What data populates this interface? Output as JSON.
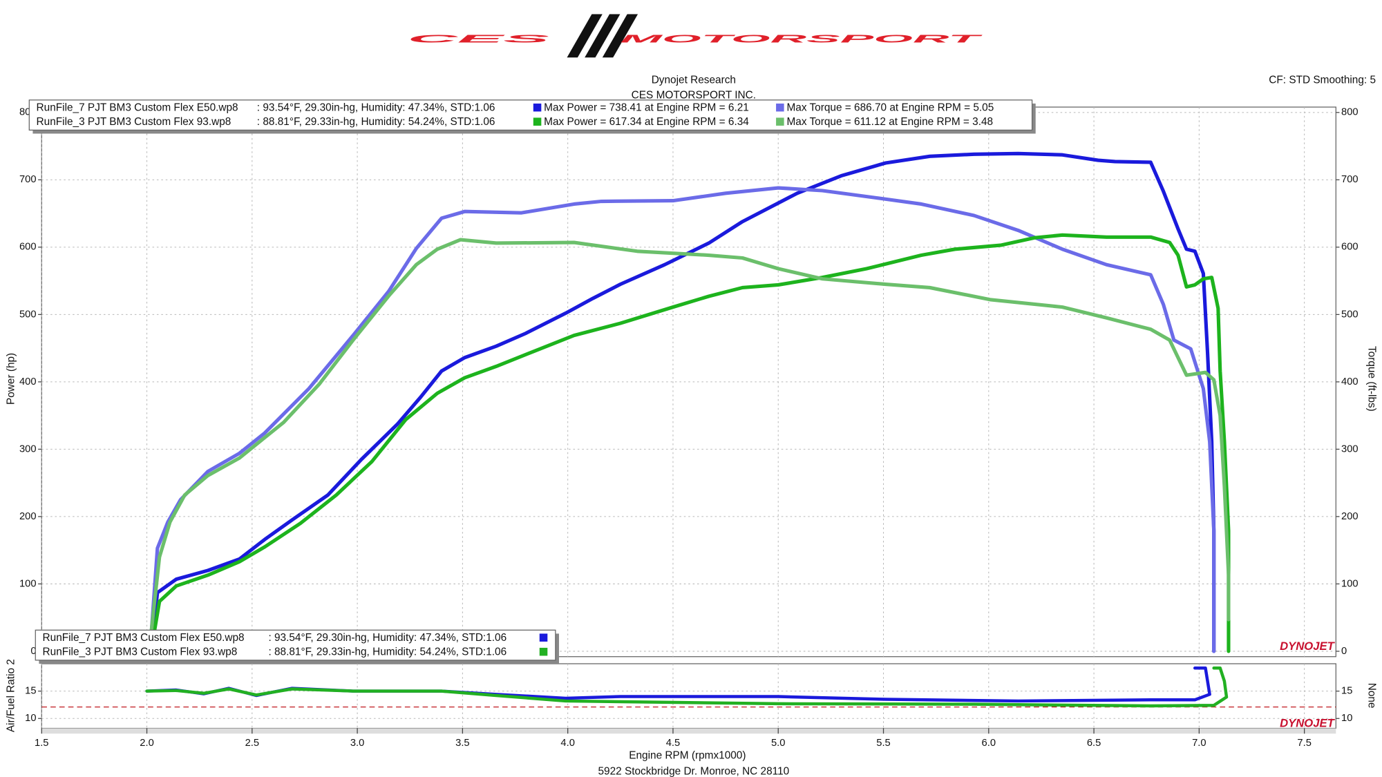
{
  "header": {
    "logo_left": "CES",
    "logo_right": "MOTORSPORT",
    "info": "CF: STD Smoothing: 5",
    "footer": "5922 Stockbridge Dr. Monroe, NC 28110",
    "watermark": "DYNOJET"
  },
  "runs": [
    {
      "file": "RunFile_7 PJT BM3 Custom Flex E50.wp8",
      "conditions": ": 93.54°F, 29.30in-hg, Humidity: 47.34%, STD:1.06"
    },
    {
      "file": "RunFile_3 PJT BM3 Custom Flex 93.wp8",
      "conditions": ": 88.81°F, 29.33in-hg, Humidity: 54.24%, STD:1.06"
    }
  ],
  "chart_data": [
    {
      "type": "line",
      "title": "Dynojet Research",
      "subtitle": "CES MOTORSPORT INC.",
      "xlabel": "Engine RPM (rpmx1000)",
      "ylabel": "Power (hp)",
      "y2label": "Torque (ft-lbs)",
      "xlim": [
        1.5,
        7.65
      ],
      "ylim": [
        -8,
        808
      ],
      "y2lim": [
        -8,
        808
      ],
      "yticks": [
        0,
        100,
        200,
        300,
        400,
        500,
        600,
        700,
        800
      ],
      "y2ticks": [
        0,
        100,
        200,
        300,
        400,
        500,
        600,
        700,
        800
      ],
      "xticks": [
        1.5,
        {
          "value": 2,
          "label": "2.0"
        },
        2.5,
        {
          "value": 3,
          "label": "3.0"
        },
        3.5,
        {
          "value": 4,
          "label": "4.0"
        },
        4.5,
        {
          "value": 5,
          "label": "5.0"
        },
        5.5,
        {
          "value": 6,
          "label": "6.0"
        },
        6.5,
        {
          "value": 7,
          "label": "7.0"
        },
        7.5
      ],
      "grid": true,
      "series": [
        {
          "name": "Max Power = 738.41 at Engine RPM = 6.21",
          "color": "#1a1adc",
          "axis": "y",
          "x": [
            2.02,
            2.05,
            2.14,
            2.29,
            2.44,
            2.56,
            2.69,
            2.86,
            3.02,
            3.19,
            3.3,
            3.4,
            3.51,
            3.66,
            3.8,
            3.99,
            4.12,
            4.25,
            4.46,
            4.67,
            4.83,
            5.09,
            5.3,
            5.51,
            5.72,
            5.93,
            6.14,
            6.35,
            6.52,
            6.6,
            6.77,
            6.83,
            6.9,
            6.94,
            6.98,
            7.02,
            7.04,
            7.06,
            7.07,
            7.07
          ],
          "values": [
            0,
            87,
            107,
            120,
            137,
            166,
            195,
            232,
            285,
            337,
            377,
            416,
            436,
            453,
            472,
            502,
            524,
            545,
            574,
            606,
            638,
            680,
            706,
            725,
            735,
            738,
            739,
            737,
            729,
            727,
            726,
            683,
            627,
            597,
            594,
            561,
            443,
            311,
            179,
            0
          ]
        },
        {
          "name": "Max Torque = 686.70 at Engine RPM = 5.05",
          "color": "#6b6be8",
          "axis": "y2",
          "x": [
            2.02,
            2.05,
            2.1,
            2.16,
            2.29,
            2.44,
            2.56,
            2.77,
            2.98,
            3.15,
            3.28,
            3.4,
            3.51,
            3.78,
            4.03,
            4.16,
            4.5,
            4.75,
            5.0,
            5.21,
            5.47,
            5.68,
            5.93,
            6.14,
            6.35,
            6.56,
            6.77,
            6.83,
            6.88,
            6.96,
            7.02,
            7.05,
            7.07,
            7.07
          ],
          "values": [
            21,
            153,
            192,
            225,
            267,
            294,
            324,
            390,
            469,
            535,
            598,
            643,
            653,
            651,
            664,
            668,
            669,
            680,
            688,
            684,
            673,
            664,
            647,
            625,
            597,
            574,
            559,
            515,
            462,
            449,
            390,
            311,
            179,
            0
          ]
        },
        {
          "name": "Max Power = 617.34 at Engine RPM = 6.34",
          "color": "#1db31d",
          "axis": "y",
          "x": [
            2.02,
            2.06,
            2.14,
            2.29,
            2.44,
            2.56,
            2.73,
            2.9,
            3.07,
            3.23,
            3.38,
            3.51,
            3.66,
            3.82,
            4.03,
            4.25,
            4.5,
            4.67,
            4.83,
            5.0,
            5.21,
            5.42,
            5.68,
            5.84,
            6.06,
            6.22,
            6.35,
            6.56,
            6.77,
            6.86,
            6.9,
            6.94,
            6.98,
            7.02,
            7.06,
            7.09,
            7.1,
            7.12,
            7.14,
            7.14
          ],
          "values": [
            0,
            74,
            97,
            113,
            133,
            155,
            190,
            232,
            282,
            344,
            383,
            406,
            423,
            443,
            469,
            487,
            511,
            527,
            540,
            544,
            555,
            568,
            588,
            597,
            603,
            614,
            618,
            615,
            615,
            607,
            588,
            541,
            544,
            553,
            555,
            509,
            416,
            311,
            179,
            0
          ]
        },
        {
          "name": "Max Torque = 611.12 at Engine RPM = 3.48",
          "color": "#6bbf6b",
          "axis": "y2",
          "x": [
            2.02,
            2.06,
            2.11,
            2.18,
            2.29,
            2.44,
            2.65,
            2.82,
            2.98,
            3.15,
            3.28,
            3.38,
            3.49,
            3.66,
            4.03,
            4.33,
            4.67,
            4.83,
            5.0,
            5.21,
            5.51,
            5.72,
            6.01,
            6.35,
            6.56,
            6.77,
            6.86,
            6.94,
            7.03,
            7.07,
            7.1,
            7.12,
            7.14,
            7.14
          ],
          "values": [
            26,
            140,
            192,
            232,
            261,
            287,
            340,
            397,
            462,
            528,
            574,
            597,
            611,
            606,
            607,
            594,
            588,
            584,
            568,
            553,
            545,
            540,
            522,
            511,
            495,
            478,
            462,
            410,
            414,
            403,
            350,
            245,
            113,
            47
          ]
        }
      ]
    },
    {
      "type": "line",
      "ylabel": "Air/Fuel Ratio 2",
      "y2label": "None",
      "xlim": [
        1.5,
        7.65
      ],
      "ylim": [
        8.2,
        20
      ],
      "y2lim": [
        8.2,
        20
      ],
      "yticks": [
        10,
        15
      ],
      "y2ticks": [
        10,
        15
      ],
      "grid": true,
      "reference_line": 12.1,
      "reference_color": "#c0181e",
      "series": [
        {
          "name": "RunFile_7 PJT BM3 Custom Flex E50.wp8",
          "color": "#1a1adc",
          "x": [
            2.0,
            2.14,
            2.27,
            2.39,
            2.52,
            2.69,
            2.98,
            3.4,
            3.66,
            3.99,
            4.25,
            5.0,
            5.51,
            6.14,
            6.77,
            6.98,
            7.05,
            7.03,
            6.98
          ],
          "values": [
            15,
            15.2,
            14.5,
            15.5,
            14.2,
            15.5,
            15,
            15,
            14.4,
            13.7,
            14,
            14,
            13.5,
            13.2,
            13.4,
            13.4,
            14.4,
            19.2,
            19.2
          ]
        },
        {
          "name": "RunFile_3 PJT BM3 Custom Flex 93.wp8",
          "color": "#22b022",
          "x": [
            2.0,
            2.14,
            2.27,
            2.39,
            2.52,
            2.69,
            2.98,
            3.4,
            3.66,
            3.99,
            5.0,
            5.93,
            6.77,
            7.07,
            7.13,
            7.12,
            7.1,
            7.07
          ],
          "values": [
            15,
            15.1,
            14.6,
            15.4,
            14.3,
            15.4,
            15,
            15,
            14.2,
            13.2,
            12.7,
            12.6,
            12.3,
            12.4,
            13.9,
            16.8,
            19.2,
            19.2
          ]
        }
      ]
    }
  ]
}
